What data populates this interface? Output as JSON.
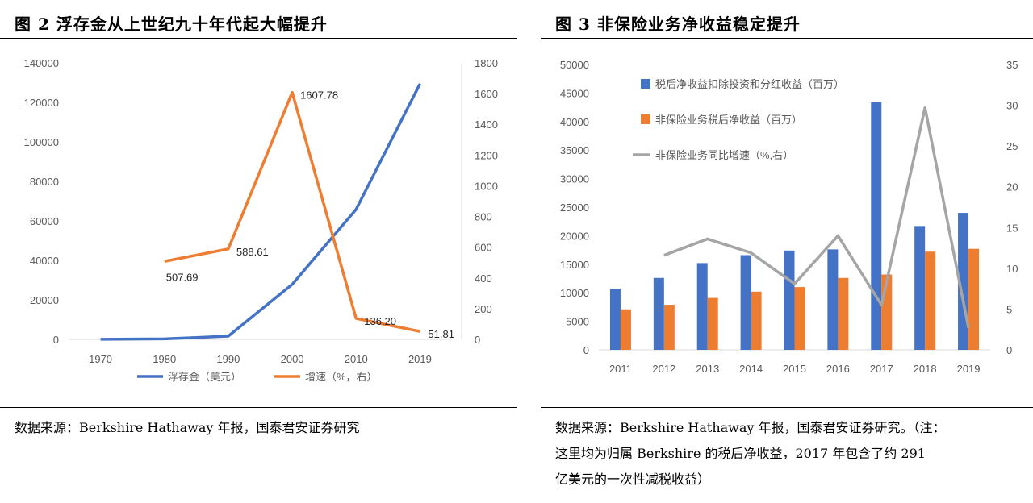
{
  "figures": [
    {
      "title": "图 2  浮存金从上世纪九十年代起大幅提升",
      "source": "数据来源：Berkshire Hathaway 年报，国泰君安证券研究",
      "chart_data": {
        "type": "line",
        "categories": [
          "1970",
          "1980",
          "1990",
          "2000",
          "2010",
          "2019"
        ],
        "y_left_ticks": [
          "0",
          "20000",
          "40000",
          "60000",
          "80000",
          "100000",
          "120000",
          "140000"
        ],
        "y_right_ticks": [
          "0",
          "200",
          "400",
          "600",
          "800",
          "1000",
          "1200",
          "1400",
          "1600",
          "1800"
        ],
        "ylim_left": [
          0,
          140000
        ],
        "ylim_right": [
          0,
          1800
        ],
        "series": [
          {
            "name": "浮存金（美元）",
            "axis": "left",
            "color": "#4472C4",
            "values": [
              39,
              237,
              1632,
              27871,
              65832,
              129400
            ]
          },
          {
            "name": "增速（%，右）",
            "axis": "right",
            "color": "#ED7D31",
            "values": [
              null,
              507.69,
              588.61,
              1607.78,
              136.2,
              51.81
            ],
            "labels": [
              "",
              "507.69",
              "588.61",
              "1607.78",
              "136.20",
              "51.81"
            ]
          }
        ],
        "legend": "bottom",
        "grid": false
      }
    },
    {
      "title": "图 3  非保险业务净收益稳定提升",
      "source_lines": [
        "数据来源：Berkshire Hathaway 年报，国泰君安证券研究。（注：",
        "这里均为归属 Berkshire 的税后净收益，2017 年包含了约 291",
        "亿美元的一次性减税收益）"
      ],
      "chart_data": {
        "type": "bar",
        "categories": [
          "2011",
          "2012",
          "2013",
          "2014",
          "2015",
          "2016",
          "2017",
          "2018",
          "2019"
        ],
        "y_left_ticks": [
          "0",
          "5000",
          "10000",
          "15000",
          "20000",
          "25000",
          "30000",
          "35000",
          "40000",
          "45000",
          "50000"
        ],
        "y_right_ticks": [
          "0",
          "5",
          "10",
          "15",
          "20",
          "25",
          "30",
          "35"
        ],
        "ylim_left": [
          0,
          50000
        ],
        "ylim_right": [
          0,
          35
        ],
        "series": [
          {
            "name": "税后净收益扣除投资和分红收益（百万）",
            "kind": "bar",
            "axis": "left",
            "color": "#4472C4",
            "values": [
              10700,
              12600,
              15200,
              16600,
              17400,
              17600,
              43400,
              21700,
              24000
            ]
          },
          {
            "name": "非保险业务税后净收益（百万）",
            "kind": "bar",
            "axis": "left",
            "color": "#ED7D31",
            "values": [
              7100,
              7900,
              9100,
              10200,
              11000,
              12600,
              13200,
              17200,
              17700
            ]
          },
          {
            "name": "非保险业务同比增速（%,右）",
            "kind": "line",
            "axis": "right",
            "color": "#A5A5A5",
            "values": [
              null,
              11.6,
              13.6,
              11.9,
              8.1,
              14.0,
              5.5,
              29.7,
              2.7
            ]
          }
        ],
        "legend": "top-left",
        "grid": false
      }
    }
  ]
}
